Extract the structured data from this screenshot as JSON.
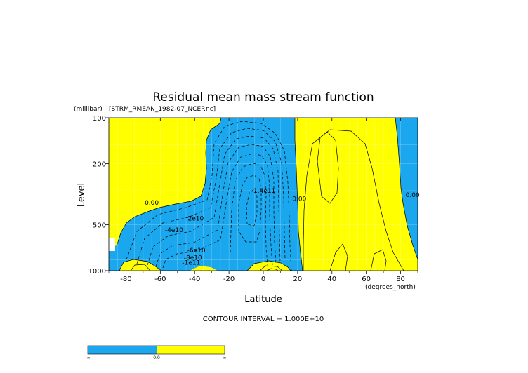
{
  "chart_data": {
    "type": "contour",
    "title": "Residual mean mass stream function",
    "dataset_label": "[STRM_RMEAN_1982-07_NCEP.nc]",
    "xlabel": "Latitude",
    "x_units": "(degrees_north)",
    "ylabel": "Level",
    "y_units": "(millibar)",
    "xlim": [
      -90,
      90
    ],
    "ylim": [
      1000,
      100
    ],
    "y_scale": "log",
    "x_ticks": [
      -80,
      -60,
      -40,
      -20,
      0,
      20,
      40,
      60,
      80
    ],
    "x_tick_labels": [
      "-80",
      "-60",
      "-40",
      "-20",
      "0",
      "20",
      "40",
      "60",
      "80"
    ],
    "y_ticks": [
      100,
      200,
      500,
      1000
    ],
    "y_tick_labels": [
      "100",
      "200",
      "500",
      "1000"
    ],
    "contour_interval_text": "CONTOUR INTERVAL = 1.000E+10",
    "contour_labels": [
      {
        "text": "0.00",
        "lat": -65,
        "level": 370
      },
      {
        "text": "-2e10",
        "lat": -40,
        "level": 470
      },
      {
        "text": "-4e10",
        "lat": -52,
        "level": 560
      },
      {
        "text": "-6e10",
        "lat": -39,
        "level": 760
      },
      {
        "text": "-8e10",
        "lat": -41,
        "level": 850
      },
      {
        "text": "-1e11",
        "lat": -42,
        "level": 915
      },
      {
        "text": "-1.4e11",
        "lat": 0,
        "level": 310
      },
      {
        "text": "0.00",
        "lat": 21,
        "level": 350
      },
      {
        "text": "0.00",
        "lat": 87,
        "level": 330
      }
    ],
    "colorbar": {
      "tick_labels": [
        "-∞",
        "0.0",
        "∞"
      ],
      "negative_color": "#1aa7ee",
      "positive_color": "#ffff00"
    },
    "colors": {
      "negative": "#1aa7ee",
      "positive": "#ffff00",
      "missing": "#ffffff"
    }
  }
}
